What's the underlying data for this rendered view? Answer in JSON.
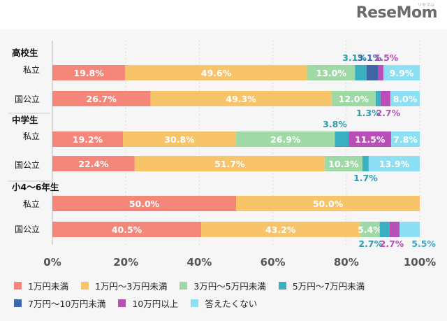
{
  "brand": {
    "name": "ReseMom",
    "sub": "リセマム"
  },
  "chart_data": {
    "type": "bar",
    "orientation": "horizontal",
    "stacked": true,
    "xlim": [
      0,
      100
    ],
    "x_ticks": [
      "0%",
      "20%",
      "40%",
      "60%",
      "80%",
      "100%"
    ],
    "grid": true,
    "legend_position": "bottom",
    "groups": [
      {
        "label": "高校生",
        "rows": [
          "私立",
          "国公立"
        ]
      },
      {
        "label": "中学生",
        "rows": [
          "私立",
          "国公立"
        ]
      },
      {
        "label": "小4～6年生",
        "rows": [
          "私立",
          "国公立"
        ]
      }
    ],
    "series": [
      {
        "name": "1万円未満",
        "color": "#f4877a"
      },
      {
        "name": "1万円～3万円未満",
        "color": "#f7c46a"
      },
      {
        "name": "3万円～5万円未満",
        "color": "#9fd9a6"
      },
      {
        "name": "5万円～7万円未満",
        "color": "#3aafc1"
      },
      {
        "name": "7万円～10万円未満",
        "color": "#3e66a9"
      },
      {
        "name": "10万円以上",
        "color": "#b94fb6"
      },
      {
        "name": "答えたくない",
        "color": "#8de0f3"
      }
    ],
    "bars": [
      {
        "group": "高校生",
        "label": "私立",
        "values": [
          19.8,
          49.6,
          13.0,
          3.1,
          3.1,
          1.5,
          9.9
        ],
        "value_labels": [
          "19.8%",
          "49.6%",
          "13.0%",
          "3.1%",
          "3.1%",
          "1.5%",
          "9.9%"
        ]
      },
      {
        "group": "高校生",
        "label": "国公立",
        "values": [
          26.7,
          49.3,
          12.0,
          1.3,
          0,
          2.7,
          8.0
        ],
        "value_labels": [
          "26.7%",
          "49.3%",
          "12.0%",
          "1.3%",
          "",
          "2.7%",
          "8.0%"
        ]
      },
      {
        "group": "中学生",
        "label": "私立",
        "values": [
          19.2,
          30.8,
          26.9,
          3.8,
          0,
          11.5,
          7.8
        ],
        "value_labels": [
          "19.2%",
          "30.8%",
          "26.9%",
          "3.8%",
          "",
          "11.5%",
          "7.8%"
        ]
      },
      {
        "group": "中学生",
        "label": "国公立",
        "values": [
          22.4,
          51.7,
          10.3,
          1.7,
          0,
          0,
          13.9
        ],
        "value_labels": [
          "22.4%",
          "51.7%",
          "10.3%",
          "1.7%",
          "",
          "",
          "13.9%"
        ]
      },
      {
        "group": "小4～6年生",
        "label": "私立",
        "values": [
          50.0,
          50.0,
          0,
          0,
          0,
          0,
          0
        ],
        "value_labels": [
          "50.0%",
          "50.0%",
          "",
          "",
          "",
          "",
          ""
        ]
      },
      {
        "group": "小4～6年生",
        "label": "国公立",
        "values": [
          40.5,
          43.2,
          5.4,
          2.7,
          0,
          2.7,
          5.5
        ],
        "value_labels": [
          "40.5%",
          "43.2%",
          "5.4%",
          "2.7%",
          "",
          "2.7%",
          "5.5%"
        ]
      }
    ]
  }
}
